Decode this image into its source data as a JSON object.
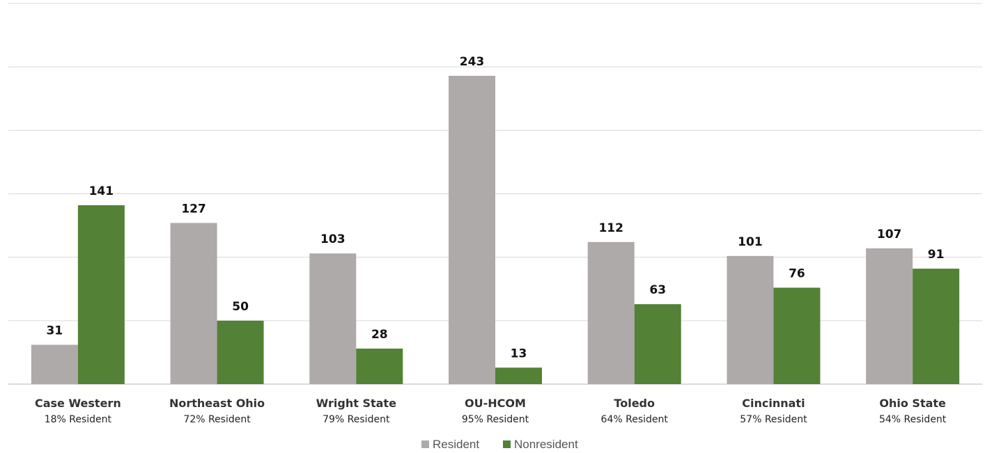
{
  "chart_data": {
    "type": "bar",
    "categories": [
      "Case Western",
      "Northeast Ohio",
      "Wright State",
      "OU-HCOM",
      "Toledo",
      "Cincinnati",
      "Ohio State"
    ],
    "subtitles": [
      "18% Resident",
      "72% Resident",
      "79% Resident",
      "95% Resident",
      "64% Resident",
      "57% Resident",
      "54% Resident"
    ],
    "series": [
      {
        "name": "Resident",
        "color": "#aeaaa9",
        "values": [
          31,
          127,
          103,
          243,
          112,
          101,
          107
        ]
      },
      {
        "name": "Nonresident",
        "color": "#538135",
        "values": [
          141,
          50,
          28,
          13,
          63,
          76,
          91
        ]
      }
    ],
    "ylim": [
      0,
      300
    ],
    "grid": true,
    "legend": "bottom-center",
    "title": "",
    "xlabel": "",
    "ylabel": ""
  }
}
